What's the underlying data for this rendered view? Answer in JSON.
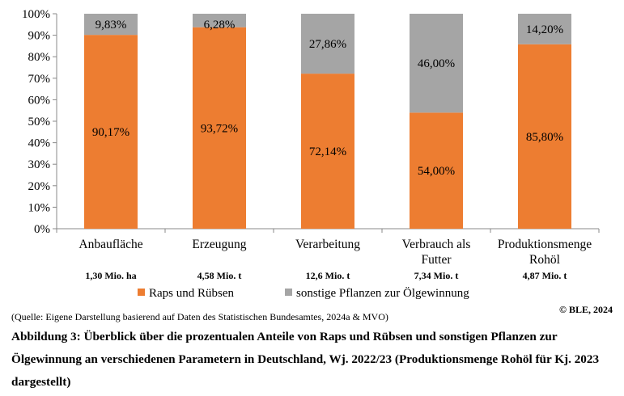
{
  "chart_data": {
    "type": "bar",
    "stacked": true,
    "categories": [
      [
        "Anbaufläche"
      ],
      [
        "Erzeugung"
      ],
      [
        "Verarbeitung"
      ],
      [
        "Verbrauch als",
        "Futter"
      ],
      [
        "Produktionsmenge",
        "Rohöl"
      ]
    ],
    "totals": [
      "1,30 Mio. ha",
      "4,58 Mio. t",
      "12,6 Mio. t",
      "7,34 Mio. t",
      "4,87 Mio. t"
    ],
    "series": [
      {
        "name": "Raps und Rübsen",
        "color": "#ED7D31",
        "values": [
          90.17,
          93.72,
          72.14,
          54.0,
          85.8
        ],
        "labels": [
          "90,17%",
          "93,72%",
          "72,14%",
          "54,00%",
          "85,80%"
        ]
      },
      {
        "name": "sonstige Pflanzen zur Ölgewinnung",
        "color": "#A5A5A5",
        "values": [
          9.83,
          6.28,
          27.86,
          46.0,
          14.2
        ],
        "labels": [
          "9,83%",
          "6,28%",
          "27,86%",
          "46,00%",
          "14,20%"
        ]
      }
    ],
    "yticks": [
      "0%",
      "10%",
      "20%",
      "30%",
      "40%",
      "50%",
      "60%",
      "70%",
      "80%",
      "90%",
      "100%"
    ],
    "ylim": [
      0,
      100
    ],
    "grid": false,
    "legend": "bottom"
  },
  "source": "(Quelle: Eigene Darstellung basierend auf Daten des Statistischen Bundesamtes, 2024a & MVO)",
  "copyright": "© BLE, 2024",
  "caption": "Abbildung 3: Überblick über die prozentualen Anteile von Raps und Rübsen und sonstigen Pflanzen zur Ölgewinnung an verschiedenen Parametern in Deutschland, Wj. 2022/23 (Produktionsmenge Rohöl für Kj. 2023 dargestellt)"
}
